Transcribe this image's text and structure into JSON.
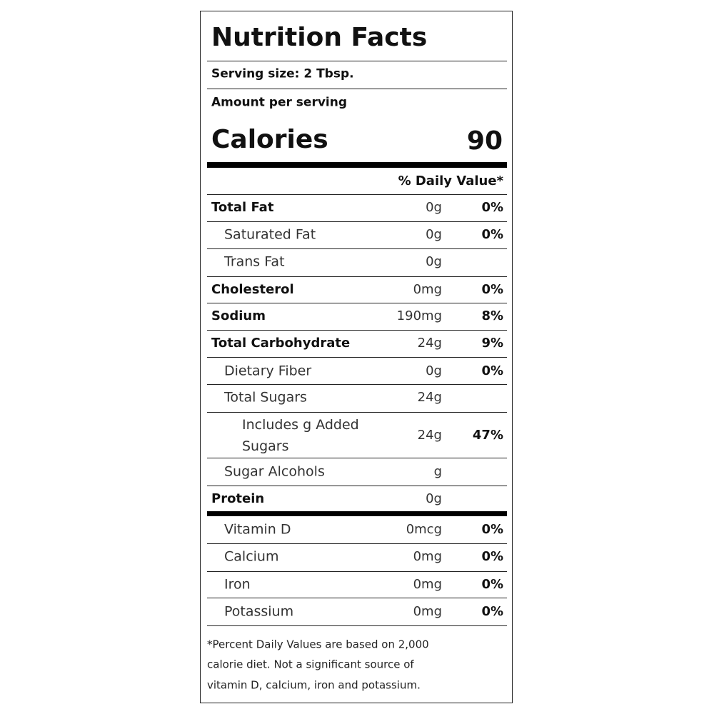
{
  "title": "Nutrition Facts",
  "serving_size": "Serving size: 2 Tbsp.",
  "amount_per_serving": "Amount per serving",
  "calories": {
    "label": "Calories",
    "value": "90"
  },
  "daily_value_header": "% Daily Value*",
  "rows": [
    {
      "name": "Total Fat",
      "amount": "0g",
      "dv": "0%"
    },
    {
      "name": "Saturated Fat",
      "amount": "0g",
      "dv": "0%"
    },
    {
      "name": "Trans Fat",
      "amount": "0g"
    },
    {
      "name": "Cholesterol",
      "amount": "0mg",
      "dv": "0%"
    },
    {
      "name": "Sodium",
      "amount": "190mg",
      "dv": "8%"
    },
    {
      "name": "Total Carbohydrate",
      "amount": "24g",
      "dv": "9%"
    },
    {
      "name": "Dietary Fiber",
      "amount": "0g",
      "dv": "0%"
    },
    {
      "name": "Total Sugars",
      "amount": "24g"
    },
    {
      "name": "Includes g Added Sugars",
      "amount": "24g",
      "dv": "47%"
    },
    {
      "name": "Sugar Alcohols",
      "amount": "g"
    },
    {
      "name": "Protein",
      "amount": "0g"
    },
    {
      "name": "Vitamin D",
      "amount": "0mcg",
      "dv": "0%"
    },
    {
      "name": "Calcium",
      "amount": "0mg",
      "dv": "0%"
    },
    {
      "name": "Iron",
      "amount": "0mg",
      "dv": "0%"
    },
    {
      "name": "Potassium",
      "amount": "0mg",
      "dv": "0%"
    }
  ],
  "footnote": [
    "*Percent Daily Values are based on 2,000",
    "calorie diet. Not a significant source of",
    "vitamin D, calcium, iron and potassium."
  ]
}
